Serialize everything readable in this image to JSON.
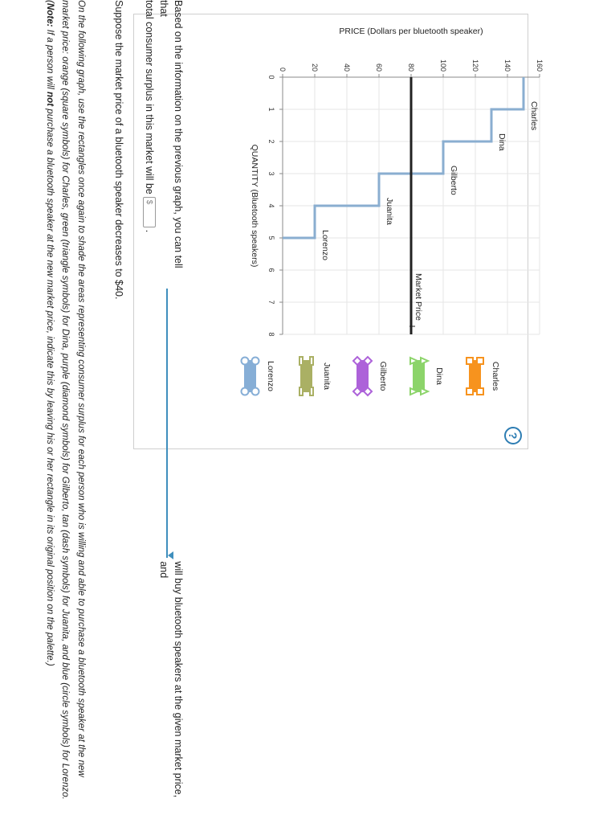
{
  "help_icon": "question-mark-icon",
  "chart_data": {
    "type": "line",
    "title": "",
    "ylabel": "PRICE (Dollars per bluetooth speaker)",
    "xlabel": "QUANTITY (Bluetooth speakers)",
    "xlim": [
      0,
      8
    ],
    "ylim": [
      0,
      160
    ],
    "x_ticks": [
      "0",
      "1",
      "2",
      "3",
      "4",
      "5",
      "6",
      "7",
      "8"
    ],
    "y_ticks": [
      "0",
      "20",
      "40",
      "60",
      "80",
      "100",
      "120",
      "140",
      "160"
    ],
    "grid": true,
    "demand_steps": [
      {
        "person": "Charles",
        "price": 150,
        "from": 0,
        "to": 1
      },
      {
        "person": "Dina",
        "price": 130,
        "from": 1,
        "to": 2
      },
      {
        "person": "Gilberto",
        "price": 100,
        "from": 2,
        "to": 3
      },
      {
        "person": "Juanita",
        "price": 60,
        "from": 3,
        "to": 4
      },
      {
        "person": "Lorenzo",
        "price": 20,
        "from": 4,
        "to": 5
      }
    ],
    "demand_color": "#8aaed0",
    "market_price": 80,
    "market_price_label": "Market Price",
    "market_price_color": "#222222"
  },
  "palette": [
    {
      "name": "Charles",
      "color": "#f7931e",
      "symbol": "square"
    },
    {
      "name": "Dina",
      "color": "#8cd46a",
      "symbol": "triangle"
    },
    {
      "name": "Gilberto",
      "color": "#ad62d9",
      "symbol": "diamond"
    },
    {
      "name": "Juanita",
      "color": "#aab064",
      "symbol": "dash"
    },
    {
      "name": "Lorenzo",
      "color": "#86aed6",
      "symbol": "circle"
    }
  ],
  "question1": {
    "part1": "Based on the information on the previous graph, you can tell that",
    "part2": "will buy bluetooth speakers at the given market price, and",
    "part3": "total consumer surplus in this market will be",
    "amount_placeholder": "$",
    "end": "."
  },
  "question2": "Suppose the market price of a bluetooth speaker decreases to $40.",
  "question3": {
    "text1": "On the following graph, use the rectangles once again to shade the areas representing consumer surplus for each person who is willing and able to purchase a bluetooth speaker at the new market price: orange (square symbols) for Charles, green (triangle symbols) for Dina, purple (diamond symbols) for Gilberto, tan (dash symbols) for Juanita, and blue (circle symbols) for Lorenzo. (",
    "note_label": "Note:",
    "text2": " If a person will ",
    "not_word": "not",
    "text3": " purchase a bluetooth speaker at the new market price, indicate this by leaving his or her rectangle in its original position on the palette.)"
  }
}
